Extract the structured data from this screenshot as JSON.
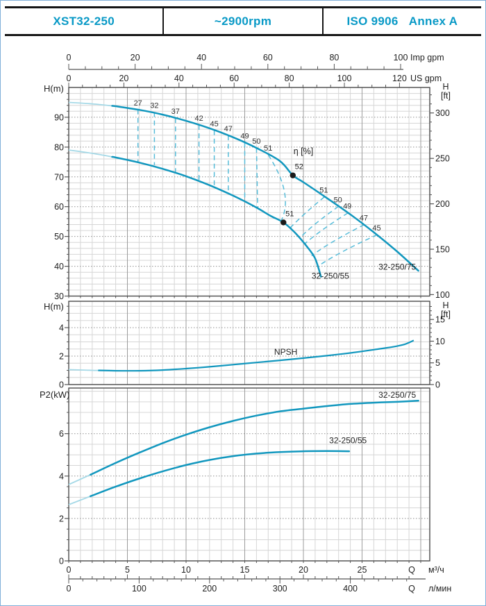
{
  "header": {
    "model": "XST32-250",
    "speed": "~2900rpm",
    "standard": "ISO 9906   Annex A"
  },
  "colors": {
    "accent": "#0899c6",
    "curve": "#1197be",
    "curve_light": "#a5d9e7",
    "eff_dash": "#56bcd9",
    "dot": "#1a1a1a",
    "grid_minor": "#d6d6d6",
    "grid_major": "#9b9b9b",
    "border": "#3c3c3c",
    "tick": "#555555",
    "text": "#1e1e1e",
    "page_border": "#7fafd9"
  },
  "axes": {
    "top": [
      {
        "name": "imp-gpm",
        "unit": "Imp gpm",
        "majors": [
          0,
          20,
          40,
          60,
          80,
          100
        ],
        "minor_step": 5,
        "minor_max": 100
      },
      {
        "name": "us-gpm",
        "unit": "US gpm",
        "majors": [
          0,
          20,
          40,
          60,
          80,
          100,
          120
        ],
        "minor_step": 5,
        "minor_max": 120
      }
    ],
    "bottom": [
      {
        "name": "m3h",
        "unit": "м³/ч",
        "q_label": "Q",
        "majors": [
          0,
          5,
          10,
          15,
          20,
          25
        ],
        "minor_step": 1,
        "minor_max": 29
      },
      {
        "name": "lmin",
        "unit": "л/мин",
        "q_label": "Q",
        "majors": [
          0,
          100,
          200,
          300,
          400
        ],
        "minor_step": 20,
        "minor_max": 480
      }
    ]
  },
  "chart_data": [
    {
      "id": "head",
      "type": "line",
      "title": "H-Q performance curves",
      "ylabel": "H(m)",
      "right_header": [
        "H",
        "[ft]"
      ],
      "xlim": [
        0,
        30.8
      ],
      "ylim": [
        30,
        100
      ],
      "yticks_left": [
        30,
        40,
        50,
        60,
        70,
        80,
        90
      ],
      "yticks_right_ft": [
        100,
        150,
        200,
        250,
        300
      ],
      "eta_label": {
        "text": "η [%]",
        "q": 20,
        "h": 77.6
      },
      "series": [
        {
          "name": "32-250/75",
          "label": "32-250/75",
          "label_at": [
            28.0,
            38.8
          ],
          "light_until": 3.7,
          "points": [
            [
              0,
              95
            ],
            [
              2,
              94.5
            ],
            [
              4,
              93.7
            ],
            [
              6,
              92.5
            ],
            [
              8,
              90.9
            ],
            [
              10,
              88.8
            ],
            [
              12,
              86.3
            ],
            [
              14,
              83.3
            ],
            [
              16,
              79.7
            ],
            [
              18,
              75.3
            ],
            [
              19.1,
              70.5
            ],
            [
              20,
              68.2
            ],
            [
              22,
              62.9
            ],
            [
              24,
              57.4
            ],
            [
              26,
              51.4
            ],
            [
              28,
              44.9
            ],
            [
              29.8,
              38.5
            ]
          ]
        },
        {
          "name": "32-250/55",
          "label": "32-250/55",
          "label_at": [
            22.3,
            35.8
          ],
          "light_until": 3.7,
          "points": [
            [
              0,
              79
            ],
            [
              2,
              77.9
            ],
            [
              4,
              76.5
            ],
            [
              6,
              74.8
            ],
            [
              8,
              72.7
            ],
            [
              10,
              70.2
            ],
            [
              12,
              67.2
            ],
            [
              14,
              63.7
            ],
            [
              16,
              59.7
            ],
            [
              17.2,
              56.9
            ],
            [
              18.3,
              54.7
            ],
            [
              19.3,
              51.2
            ],
            [
              20.3,
              46.6
            ],
            [
              21.0,
              42.6
            ],
            [
              21.5,
              36.5
            ]
          ]
        }
      ],
      "bep": [
        {
          "value": 52,
          "series": "32-250/75",
          "q": 19.1,
          "h": 70.5
        },
        {
          "value": 51,
          "series": "32-250/55",
          "q": 18.3,
          "h": 54.7
        }
      ],
      "efficiency_contours": [
        {
          "value": 27,
          "side": "left",
          "top": [
            5.9,
            92.6
          ],
          "bottom": [
            5.9,
            75.1
          ]
        },
        {
          "value": 32,
          "side": "left",
          "top": [
            7.3,
            91.7
          ],
          "bottom": [
            7.3,
            73.9
          ]
        },
        {
          "value": 37,
          "side": "left",
          "top": [
            9.1,
            89.7
          ],
          "bottom": [
            9.1,
            71.4
          ]
        },
        {
          "value": 42,
          "side": "left",
          "top": [
            11.1,
            87.4
          ],
          "bottom": [
            11.1,
            68.5
          ]
        },
        {
          "value": 45,
          "side": "left",
          "top": [
            12.4,
            85.6
          ],
          "bottom": [
            12.4,
            66.4
          ]
        },
        {
          "value": 47,
          "side": "left",
          "top": [
            13.6,
            83.9
          ],
          "bottom": [
            13.6,
            64.4
          ]
        },
        {
          "value": 49,
          "side": "left",
          "top": [
            15.0,
            81.5
          ],
          "bottom": [
            15.0,
            61.8
          ]
        },
        {
          "value": 50,
          "side": "left",
          "top": [
            16.0,
            79.7
          ],
          "bottom": [
            16.1,
            59.5
          ]
        },
        {
          "value": 51,
          "side": "left",
          "top": [
            17.0,
            77.4
          ],
          "bottom": [
            18.1,
            55.2
          ],
          "ctrl": [
            19.2,
            64.0
          ]
        },
        {
          "value": 51,
          "side": "right",
          "top": [
            21.8,
            63.3
          ],
          "bottom": [
            18.9,
            53.0
          ],
          "ctrl": [
            20.0,
            57.5
          ]
        },
        {
          "value": 50,
          "side": "right",
          "top": [
            23.0,
            60.1
          ],
          "bottom": [
            19.7,
            49.5
          ],
          "ctrl": [
            20.8,
            54.0
          ]
        },
        {
          "value": 49,
          "side": "right",
          "top": [
            23.8,
            57.9
          ],
          "bottom": [
            20.1,
            47.5
          ],
          "ctrl": [
            21.4,
            52.0
          ]
        },
        {
          "value": 47,
          "side": "right",
          "top": [
            25.2,
            54.0
          ],
          "bottom": [
            20.7,
            43.5
          ],
          "ctrl": [
            22.2,
            48.0
          ]
        },
        {
          "value": 45,
          "side": "right",
          "top": [
            26.3,
            50.6
          ],
          "bottom": [
            21.2,
            39.9
          ],
          "ctrl": [
            22.9,
            44.5
          ]
        }
      ]
    },
    {
      "id": "npsh",
      "type": "line",
      "title": "NPSH curve",
      "ylabel": "H(m)",
      "right_header": [
        "H",
        "[ft]"
      ],
      "ylim": [
        0,
        5.85
      ],
      "yticks_left": [
        0,
        2,
        4
      ],
      "yticks_right_ft": [
        0,
        5,
        10,
        15
      ],
      "series": [
        {
          "name": "NPSH",
          "label": "NPSH",
          "label_at": [
            18.5,
            2.1
          ],
          "light_until": 2.5,
          "points": [
            [
              0,
              1.05
            ],
            [
              2,
              1.0
            ],
            [
              4,
              0.97
            ],
            [
              6,
              0.97
            ],
            [
              8,
              1.02
            ],
            [
              10,
              1.12
            ],
            [
              12,
              1.25
            ],
            [
              14,
              1.4
            ],
            [
              16,
              1.55
            ],
            [
              18,
              1.7
            ],
            [
              20,
              1.86
            ],
            [
              22,
              2.03
            ],
            [
              24,
              2.22
            ],
            [
              26,
              2.45
            ],
            [
              27.5,
              2.63
            ],
            [
              28.6,
              2.82
            ],
            [
              29.4,
              3.1
            ]
          ]
        }
      ]
    },
    {
      "id": "p2",
      "type": "line",
      "title": "P2-Q power curves",
      "ylabel": "P2(kW)",
      "ylim": [
        0,
        8.15
      ],
      "yticks_left": [
        0,
        2,
        4,
        6
      ],
      "series": [
        {
          "name": "32-250/75",
          "label": "32-250/75",
          "label_at": [
            28.0,
            7.7
          ],
          "light_until": 2.0,
          "points": [
            [
              0,
              3.6
            ],
            [
              2,
              4.1
            ],
            [
              4,
              4.62
            ],
            [
              6,
              5.1
            ],
            [
              8,
              5.55
            ],
            [
              10,
              5.95
            ],
            [
              12,
              6.3
            ],
            [
              14,
              6.6
            ],
            [
              16,
              6.85
            ],
            [
              18,
              7.05
            ],
            [
              20,
              7.18
            ],
            [
              22,
              7.3
            ],
            [
              24,
              7.4
            ],
            [
              26,
              7.46
            ],
            [
              28,
              7.5
            ],
            [
              29.8,
              7.55
            ]
          ]
        },
        {
          "name": "32-250/55",
          "label": "32-250/55",
          "label_at": [
            23.8,
            5.55
          ],
          "light_until": 2.0,
          "points": [
            [
              0,
              2.65
            ],
            [
              2,
              3.08
            ],
            [
              4,
              3.5
            ],
            [
              6,
              3.88
            ],
            [
              8,
              4.22
            ],
            [
              10,
              4.52
            ],
            [
              12,
              4.76
            ],
            [
              14,
              4.94
            ],
            [
              16,
              5.06
            ],
            [
              18,
              5.13
            ],
            [
              20,
              5.17
            ],
            [
              22,
              5.18
            ],
            [
              23.9,
              5.17
            ]
          ]
        }
      ]
    }
  ]
}
